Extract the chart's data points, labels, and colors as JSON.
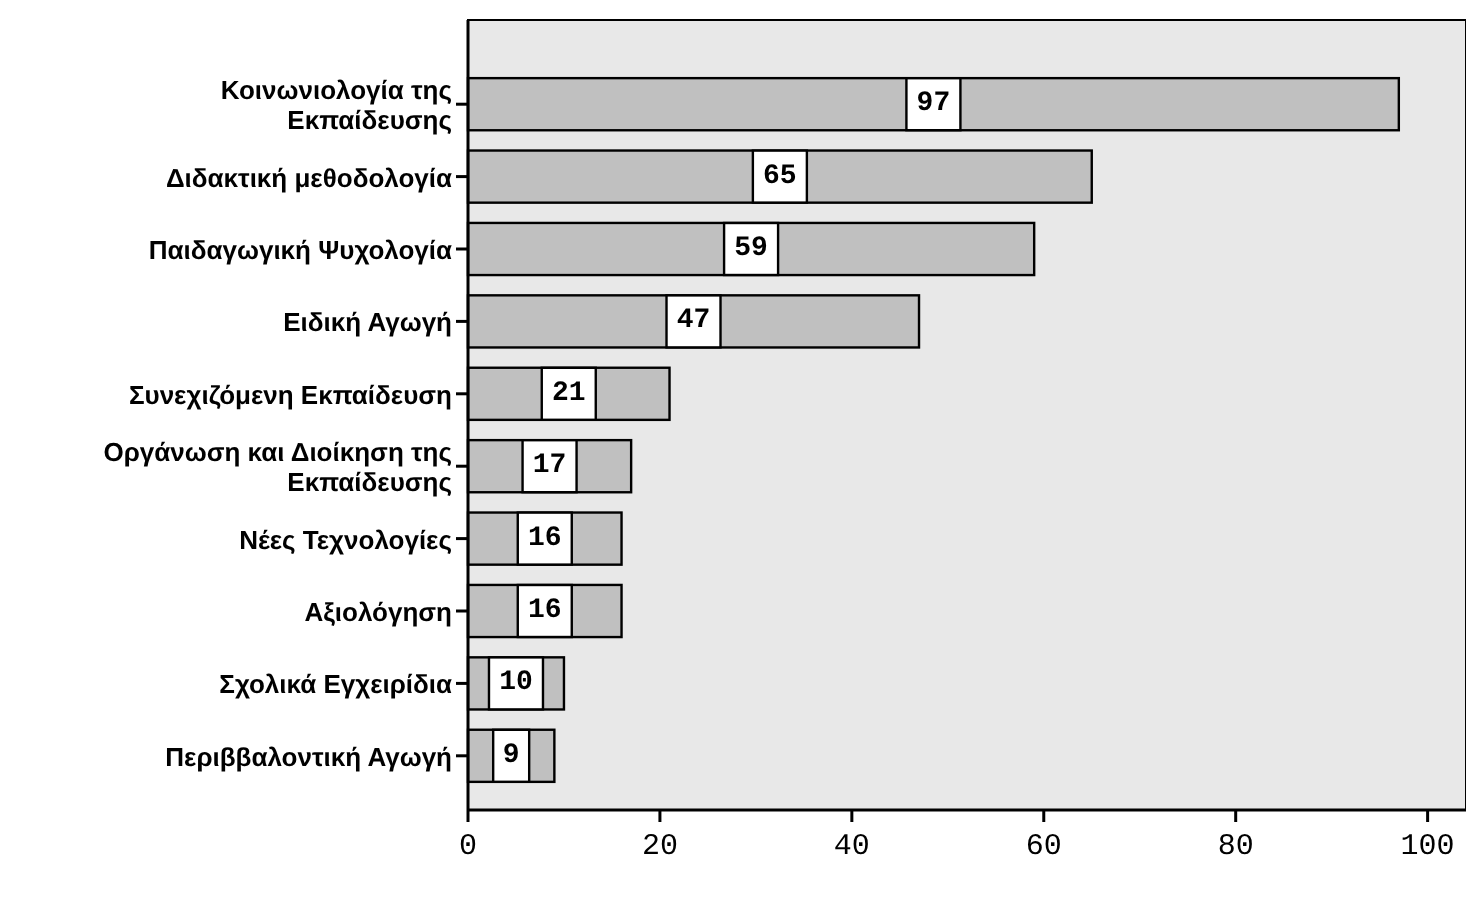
{
  "chart_data": {
    "type": "bar",
    "orientation": "horizontal",
    "categories": [
      "Κοινωνιολογία της Εκπαίδευσης",
      "Διδακτική μεθοδολογία",
      "Παιδαγωγική Ψυχολογία",
      "Ειδική Αγωγή",
      "Συνεχιζόμενη Εκπαίδευση",
      "Οργάνωση και Διοίκηση της Εκπαίδευσης",
      "Νέες Τεχνολογίες",
      "Αξιολόγηση",
      "Σχολικά Εγχειρίδια",
      "Περιββαλοντική Αγωγή"
    ],
    "values": [
      97,
      65,
      59,
      47,
      21,
      17,
      16,
      16,
      10,
      9
    ],
    "color": "#c0c0c0",
    "xlim": [
      0,
      104
    ],
    "xticks": [
      0,
      20,
      40,
      60,
      80,
      100
    ],
    "data_labels": true
  }
}
